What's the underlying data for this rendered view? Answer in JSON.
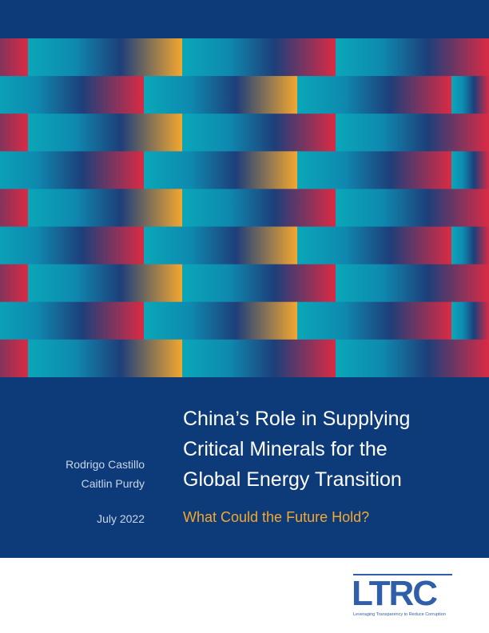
{
  "authors": [
    "Rodrigo Castillo",
    "Caitlin Purdy"
  ],
  "date": "July 2022",
  "title": [
    "China’s Role in Supplying",
    "Critical Minerals for the",
    "Global Energy Transition"
  ],
  "subtitle": "What Could the Future Hold?",
  "logo": {
    "name": "LTRC",
    "tagline": "Leveraging Transparency to Reduce Corruption"
  }
}
